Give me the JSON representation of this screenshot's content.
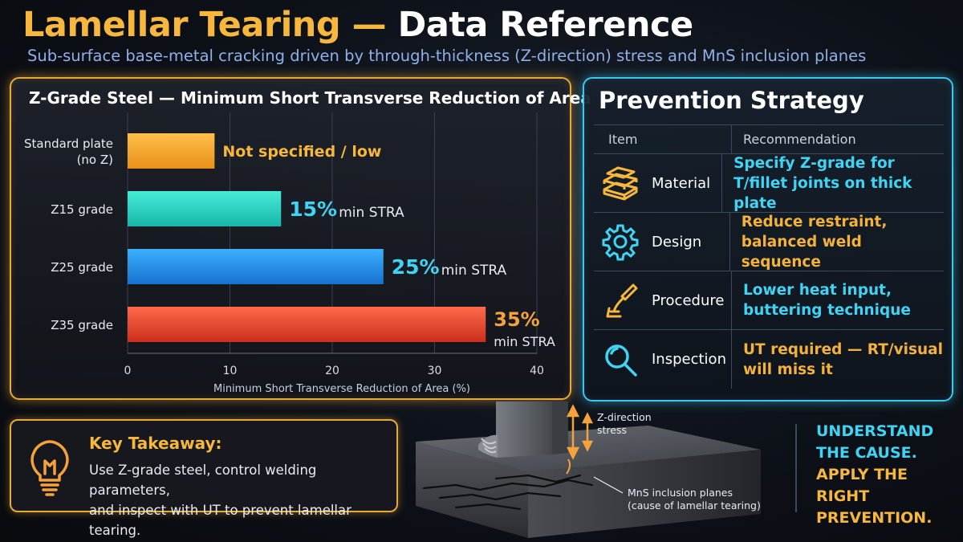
{
  "header": {
    "title_part1": "Lamellar Tearing",
    "title_dash": " — ",
    "title_part2": "Data Reference",
    "subtitle": "Sub-surface base-metal cracking driven by through-thickness (Z-direction) stress and MnS inclusion planes"
  },
  "colors": {
    "accent_orange": "#f6b73c",
    "accent_cyan": "#3fd4f4",
    "bar_standard": "#f4a623",
    "bar_z15": "#27d3c2",
    "bar_z25": "#1f95ea",
    "bar_z35": "#e8452e"
  },
  "chart_data": {
    "type": "bar",
    "orientation": "horizontal",
    "title": "Z-Grade Steel — Minimum Short Transverse Reduction of Area",
    "xlabel": "Minimum Short Transverse Reduction of Area (%)",
    "xlim": [
      0,
      40
    ],
    "xticks": [
      "0",
      "10",
      "20",
      "30",
      "40"
    ],
    "grid": true,
    "bars": [
      {
        "category_line1": "Standard plate",
        "category_line2": "(no Z)",
        "value": 8.5,
        "value_label": "Not specified / low",
        "unit_label": ""
      },
      {
        "category_line1": "Z15 grade",
        "category_line2": "",
        "value": 15,
        "value_label": "15%",
        "unit_label": "min STRA"
      },
      {
        "category_line1": "Z25 grade",
        "category_line2": "",
        "value": 25,
        "value_label": "25%",
        "unit_label": "min STRA"
      },
      {
        "category_line1": "Z35 grade",
        "category_line2": "",
        "value": 35,
        "value_label": "35%",
        "unit_label": "min STRA"
      }
    ]
  },
  "prevention": {
    "title": "Prevention Strategy",
    "col_item": "Item",
    "col_rec": "Recommendation",
    "rows": [
      {
        "icon": "plates-stack-icon",
        "item": "Material",
        "rec_line1": "Specify Z-grade for",
        "rec_line2": "T/fillet joints on thick plate",
        "color": "cyan"
      },
      {
        "icon": "gear-icon",
        "item": "Design",
        "rec_line1": "Reduce restraint,",
        "rec_line2": "balanced weld sequence",
        "color": "orange"
      },
      {
        "icon": "welding-torch-icon",
        "item": "Procedure",
        "rec_line1": "Lower heat input,",
        "rec_line2": "buttering technique",
        "color": "cyan"
      },
      {
        "icon": "magnifier-icon",
        "item": "Inspection",
        "rec_line1": "UT required — RT/visual",
        "rec_line2": "will miss it",
        "color": "orange"
      }
    ]
  },
  "takeaway": {
    "title": "Key Takeaway:",
    "line1": "Use Z-grade steel, control welding parameters,",
    "line2": "and inspect with UT to prevent lamellar tearing."
  },
  "illustration": {
    "z_label_line1": "Z-direction",
    "z_label_line2": "stress",
    "mns_label_line1": "MnS inclusion planes",
    "mns_label_line2": "(cause of lamellar tearing)"
  },
  "cta": {
    "line1": "UNDERSTAND",
    "line2": "THE CAUSE.",
    "line3": "APPLY THE RIGHT",
    "line4": "PREVENTION."
  }
}
